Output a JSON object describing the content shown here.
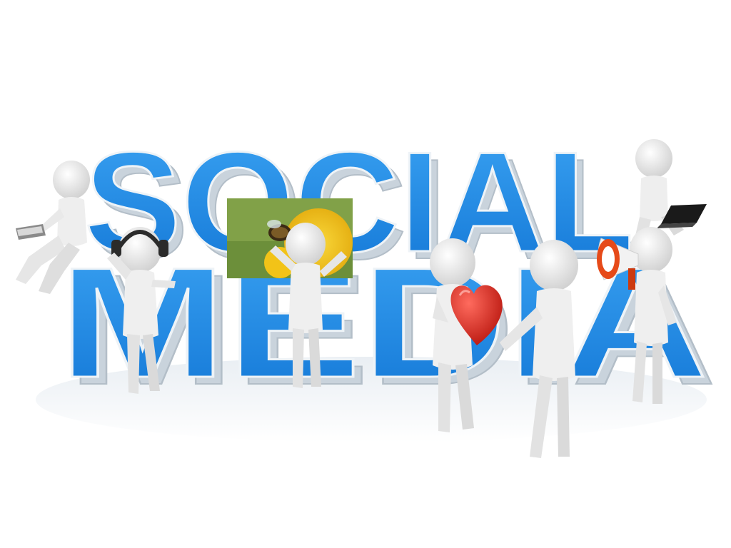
{
  "scene": {
    "word_top": "SOCIAL",
    "word_bottom": "MEDIA",
    "colors": {
      "letter_face": "#1f8fe6",
      "letter_face_dark": "#0b66c2",
      "letter_side": "#c9d3dc",
      "letter_edge": "#eef3f7",
      "figure": "#f4f4f4",
      "figure_shade": "#cfcfcf",
      "heart": "#e8241a",
      "megaphone": "#e64a19",
      "headphones": "#2b2b2b",
      "laptop": "#1a1a1a",
      "flower": "#f2c318",
      "photo_bg": "#6c8f3a"
    },
    "figures": [
      {
        "name": "figure-reading-book",
        "prop": "book-icon"
      },
      {
        "name": "figure-headphones",
        "prop": "headphones-icon"
      },
      {
        "name": "figure-holding-photo",
        "prop": "photo-icon"
      },
      {
        "name": "figure-holding-heart",
        "prop": "heart-icon"
      },
      {
        "name": "figure-receiving-heart",
        "prop": ""
      },
      {
        "name": "figure-laptop",
        "prop": "laptop-icon"
      },
      {
        "name": "figure-megaphone",
        "prop": "megaphone-icon"
      }
    ]
  }
}
